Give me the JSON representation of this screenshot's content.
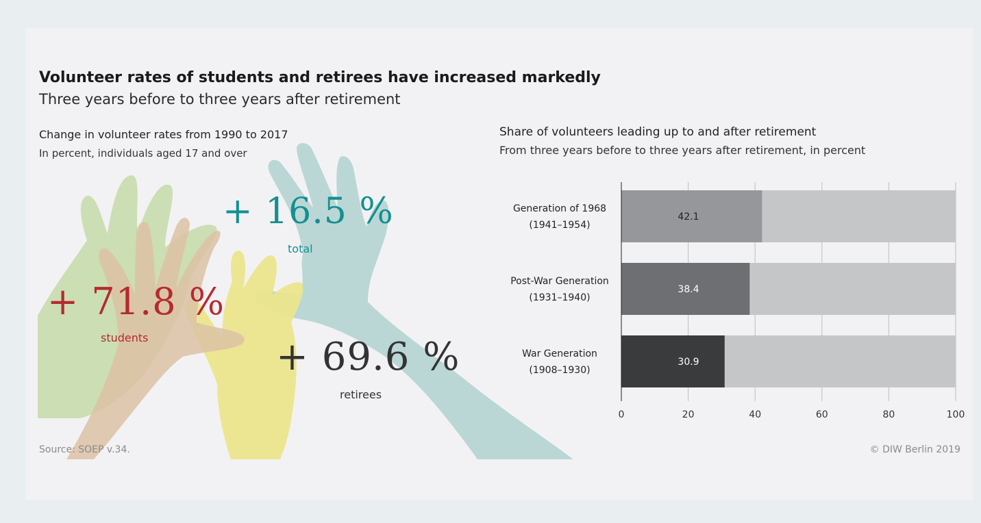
{
  "header": {
    "title": "Volunteer rates of students and retirees have increased markedly",
    "subtitle": "Three years before to three years after retirement"
  },
  "left_panel": {
    "heading": "Change in volunteer rates from 1990 to 2017",
    "subheading": "In percent, individuals aged 17 and over",
    "stats": {
      "total": {
        "value": "+ 16.5 %",
        "label": "total"
      },
      "students": {
        "value": "+ 71.8 %",
        "label": "students"
      },
      "retirees": {
        "value": "+ 69.6 %",
        "label": "retirees"
      }
    }
  },
  "right_panel": {
    "heading": "Share of volunteers leading up to and after retirement",
    "subheading": "From three years before to three years after retirement, in percent"
  },
  "footer": {
    "source": "Source: SOEP v.34.",
    "copyright": "© DIW Berlin 2019"
  },
  "colors": {
    "total": "#149090",
    "students": "#b52a2e",
    "retirees": "#333333",
    "bar_remainder": "#c5c6c8"
  },
  "chart_data": {
    "type": "bar",
    "orientation": "horizontal",
    "stacked_to": 100,
    "categories": [
      {
        "line1": "Generation of 1968",
        "line2": "(1941–1954)"
      },
      {
        "line1": "Post-War Generation",
        "line2": "(1931–1940)"
      },
      {
        "line1": "War Generation",
        "line2": "(1908–1930)"
      }
    ],
    "values": [
      42.1,
      38.4,
      30.9
    ],
    "value_labels": [
      "42.1",
      "38.4",
      "30.9"
    ],
    "bar_colors": [
      "#96979a",
      "#6e6f72",
      "#3a3b3d"
    ],
    "label_colors": [
      "#222222",
      "#ffffff",
      "#ffffff"
    ],
    "xlim": [
      0,
      100
    ],
    "xticks": [
      0,
      20,
      40,
      60,
      80,
      100
    ],
    "grid": true
  }
}
